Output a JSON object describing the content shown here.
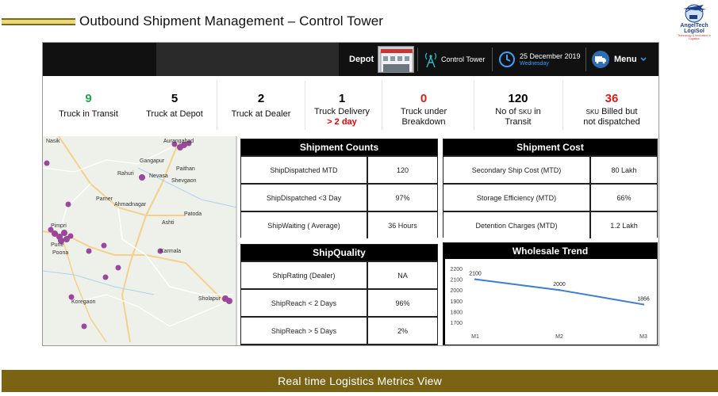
{
  "header": {
    "title": "Outbound Shipment Management – Control Tower",
    "logo_text": "AngelTech LogiSol",
    "logo_tagline": "Technology & Innovation in Logistics"
  },
  "nav": {
    "depot_label": "Depot",
    "control_tower_label": "Control Tower",
    "date": "25 December 2019",
    "day": "Wednesday",
    "menu_label": "Menu"
  },
  "kpis": [
    {
      "value": "9",
      "label": "Truck in Transit",
      "color": "#1fa84c"
    },
    {
      "value": "5",
      "label": "Truck at Depot",
      "color": "#000000"
    },
    {
      "value": "2",
      "label": "Truck at Dealer",
      "color": "#000000"
    },
    {
      "value": "1",
      "label": "Truck Delivery",
      "sub": "> 2 day",
      "color": "#000000"
    },
    {
      "value": "0",
      "label": "Truck under",
      "label2": "Breakdown",
      "color": "#e01b1b"
    },
    {
      "value": "120",
      "label_a": "No of",
      "label_b": "SKU",
      "label_c": "in",
      "label2": "Transit",
      "color": "#000000"
    },
    {
      "value": "36",
      "label_a": "SKU",
      "label_c": "Billed but",
      "label2": "not dispatched",
      "color": "#e01b1b"
    }
  ],
  "map": {
    "labels": [
      "Nasik",
      "Aurangabad",
      "Gangapur",
      "Paithan",
      "Rahuri",
      "Nevasa",
      "Shevgaon",
      "Parner",
      "Ahmadnagar",
      "Pimpri",
      "Ashti",
      "Patoda",
      "Pune",
      "Poona",
      "Karmala",
      "Koregaon",
      "Sholapur"
    ]
  },
  "shipment_counts": {
    "title": "Shipment Counts",
    "rows": [
      {
        "label": "ShipDispatched MTD",
        "value": "120"
      },
      {
        "label": "ShipDispatched <3 Day",
        "value": "97%"
      },
      {
        "label": "ShipWaiting ( Average)",
        "value": "36 Hours"
      }
    ]
  },
  "shipment_cost": {
    "title": "Shipment Cost",
    "rows": [
      {
        "label": "Secondary Ship Cost (MTD)",
        "value": "80 Lakh"
      },
      {
        "label": "Storage Efficiency (MTD)",
        "value": "66%"
      },
      {
        "label": "Detention Charges (MTD)",
        "value": "1.2 Lakh"
      }
    ]
  },
  "ship_quality": {
    "title": "ShipQuality",
    "rows": [
      {
        "label": "ShipRating (Dealer)",
        "value": "NA"
      },
      {
        "label": "ShipReach < 2 Days",
        "value": "96%"
      },
      {
        "label": "ShipReach > 5 Days",
        "value": "2%"
      }
    ]
  },
  "chart_data": {
    "type": "line",
    "title": "Wholesale Trend",
    "categories": [
      "M1",
      "M2",
      "M3"
    ],
    "values": [
      2100,
      2000,
      1866
    ],
    "data_labels": [
      "2100",
      "2000",
      "1866"
    ],
    "ylim": [
      1700,
      2200
    ],
    "yticks": [
      "2200",
      "2100",
      "2000",
      "1900",
      "1800",
      "1700"
    ],
    "xlabel": "",
    "ylabel": "",
    "color": "#3b7dd8",
    "grid": false
  },
  "footer": {
    "banner": "Real time Logistics Metrics View"
  }
}
